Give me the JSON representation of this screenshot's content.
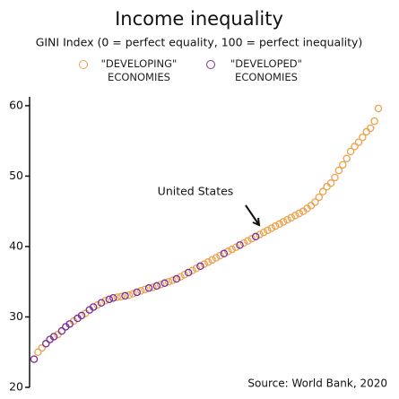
{
  "chart_data": {
    "type": "scatter",
    "title": "Income inequality",
    "subtitle": "GINI Index (0 = perfect equality, 100 = perfect inequality)",
    "series": [
      {
        "name": "\"DEVELOPING\" ECONOMIES",
        "color": "#eea04c",
        "x": [
          2,
          3,
          7,
          11,
          14,
          17,
          19,
          22,
          23,
          25,
          26,
          28,
          29,
          31,
          33,
          35,
          36,
          38,
          39,
          41,
          42,
          44,
          45,
          46,
          47,
          48,
          50,
          51,
          52,
          54,
          55,
          56,
          58,
          59,
          60,
          61,
          62,
          63,
          64,
          65,
          66,
          67,
          68,
          69,
          70,
          71,
          72,
          73,
          74,
          75,
          76,
          77,
          78,
          79,
          80,
          81,
          82,
          83,
          84,
          85,
          86,
          87,
          88
        ],
        "values": [
          25.0,
          25.6,
          27.5,
          29.4,
          30.5,
          31.7,
          32.3,
          32.8,
          32.9,
          33.1,
          33.3,
          33.7,
          33.9,
          34.2,
          34.6,
          35.0,
          35.2,
          35.7,
          36.0,
          36.6,
          36.9,
          37.5,
          37.8,
          38.1,
          38.4,
          38.7,
          39.3,
          39.6,
          39.9,
          40.5,
          40.8,
          41.1,
          41.7,
          42.0,
          42.3,
          42.6,
          42.9,
          43.2,
          43.5,
          43.8,
          44.1,
          44.4,
          44.7,
          45.0,
          45.4,
          45.8,
          46.3,
          47.0,
          47.8,
          48.5,
          49.0,
          49.8,
          50.8,
          51.6,
          52.5,
          53.5,
          54.2,
          54.8,
          55.5,
          56.3,
          56.8,
          57.8,
          59.6
        ]
      },
      {
        "name": "\"DEVELOPED\" ECONOMIES",
        "color": "#7b2d8e",
        "x": [
          1,
          4,
          5,
          6,
          8,
          9,
          10,
          12,
          13,
          15,
          16,
          18,
          20,
          21,
          24,
          27,
          30,
          32,
          34,
          37,
          40,
          43,
          49,
          53,
          57
        ],
        "values": [
          24.0,
          26.2,
          26.8,
          27.2,
          28.0,
          28.6,
          29.0,
          29.8,
          30.2,
          31.0,
          31.4,
          32.0,
          32.5,
          32.7,
          33.0,
          33.5,
          34.1,
          34.4,
          34.8,
          35.4,
          36.3,
          37.2,
          39.0,
          40.2,
          41.4
        ]
      }
    ],
    "xlim": [
      1,
      88
    ],
    "ylim": [
      20,
      61
    ],
    "yticks": [
      20,
      30,
      40,
      50,
      60
    ],
    "annotation": "United States",
    "source": "Source: World Bank, 2020"
  }
}
